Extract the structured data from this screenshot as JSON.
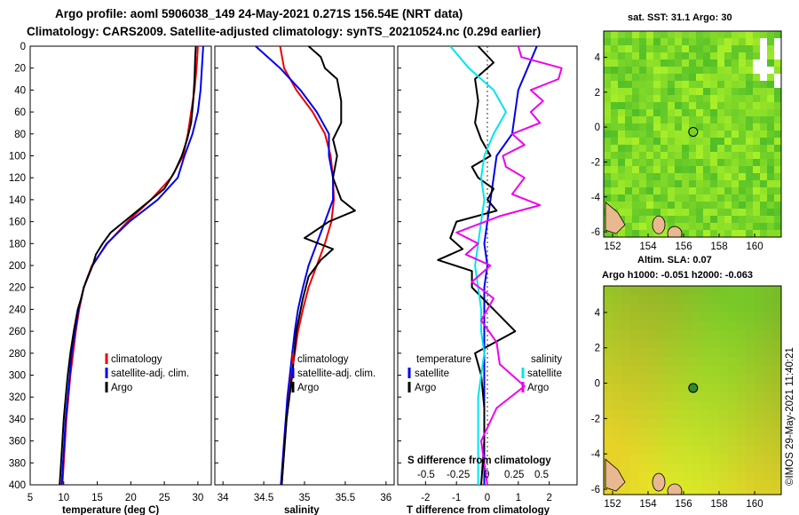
{
  "titles": {
    "line1": "Argo profile: aoml 5906038_149 24-May-2021 0.271S 156.54E (NRT data)",
    "line2": "Climatology: CARS2009. Satellite-adjusted climatology: synTS_20210524.nc (0.29d earlier)"
  },
  "colors": {
    "climatology": "#ee0000",
    "satellite": "#0000ee",
    "argo": "#000000",
    "sal_sat": "#00e5ee",
    "sal_argo": "#ee00ee",
    "land": "#e8b890"
  },
  "chart_data": [
    {
      "type": "line",
      "id": "temperature",
      "xlabel": "temperature (deg C)",
      "xlim": [
        5,
        32
      ],
      "ylim": [
        0,
        400
      ],
      "xticks": [
        5,
        10,
        15,
        20,
        25,
        30
      ],
      "xtick_labels": [
        "5",
        "10",
        "15",
        "20",
        "25",
        "30"
      ],
      "yticks": [
        0,
        20,
        40,
        60,
        80,
        100,
        120,
        140,
        160,
        180,
        200,
        220,
        240,
        260,
        280,
        300,
        320,
        340,
        360,
        380,
        400
      ],
      "legend": [
        "climatology",
        "satellite-adj. clim.",
        "Argo"
      ],
      "series": [
        {
          "name": "climatology",
          "color": "#ee0000",
          "y": [
            0,
            20,
            40,
            60,
            80,
            100,
            120,
            140,
            160,
            180,
            200,
            220,
            240,
            260,
            280,
            300,
            320,
            340,
            360,
            380,
            400
          ],
          "x": [
            30.0,
            29.8,
            29.5,
            29.0,
            28.5,
            27.8,
            26.0,
            23.0,
            19.5,
            16.5,
            14.2,
            13.0,
            12.3,
            11.8,
            11.4,
            11.0,
            10.7,
            10.4,
            10.2,
            10.0,
            9.8
          ]
        },
        {
          "name": "satellite-adj. clim.",
          "color": "#0000ee",
          "y": [
            0,
            20,
            40,
            60,
            80,
            100,
            120,
            140,
            160,
            180,
            200,
            220,
            240,
            260,
            280,
            300,
            320,
            340,
            360,
            380,
            400
          ],
          "x": [
            30.8,
            30.6,
            30.4,
            30.0,
            29.2,
            28.0,
            27.0,
            24.0,
            19.8,
            16.4,
            14.3,
            13.0,
            12.2,
            11.7,
            11.2,
            10.9,
            10.6,
            10.3,
            10.1,
            9.9,
            9.7
          ]
        },
        {
          "name": "Argo",
          "color": "#000000",
          "y": [
            0,
            10,
            30,
            50,
            70,
            85,
            100,
            115,
            130,
            145,
            160,
            170,
            180,
            190,
            200,
            210,
            220,
            230,
            240,
            260,
            280,
            300,
            320,
            340,
            360,
            380,
            400
          ],
          "x": [
            29.7,
            29.6,
            29.5,
            29.3,
            29.0,
            28.4,
            27.6,
            26.5,
            25.0,
            22.0,
            19.0,
            17.0,
            15.8,
            14.8,
            14.3,
            13.6,
            13.0,
            12.6,
            12.1,
            11.5,
            11.0,
            10.6,
            10.3,
            10.0,
            9.8,
            9.6,
            9.4
          ]
        }
      ]
    },
    {
      "type": "line",
      "id": "salinity",
      "xlabel": "salinity",
      "xlim": [
        33.9,
        36.1
      ],
      "ylim": [
        0,
        400
      ],
      "xticks": [
        34,
        34.5,
        35,
        35.5,
        36
      ],
      "xtick_labels": [
        "34",
        "34.5",
        "35",
        "35.5",
        "36"
      ],
      "legend": [
        "climatology",
        "satellite-adj. clim.",
        "Argo"
      ],
      "series": [
        {
          "name": "climatology",
          "color": "#ee0000",
          "y": [
            0,
            20,
            40,
            60,
            80,
            100,
            120,
            140,
            160,
            180,
            200,
            220,
            240,
            260,
            280,
            300,
            320,
            340,
            360,
            380,
            400
          ],
          "x": [
            34.7,
            34.75,
            34.9,
            35.1,
            35.25,
            35.32,
            35.35,
            35.36,
            35.33,
            35.25,
            35.15,
            35.05,
            34.98,
            34.92,
            34.88,
            34.84,
            34.81,
            34.78,
            34.76,
            34.74,
            34.72
          ]
        },
        {
          "name": "satellite-adj. clim.",
          "color": "#0000ee",
          "y": [
            0,
            20,
            40,
            60,
            80,
            100,
            120,
            140,
            160,
            180,
            200,
            220,
            240,
            260,
            280,
            300,
            320,
            340,
            360,
            380,
            400
          ],
          "x": [
            34.4,
            34.7,
            34.95,
            35.15,
            35.3,
            35.3,
            35.35,
            35.35,
            35.25,
            35.15,
            35.05,
            34.98,
            34.92,
            34.88,
            34.85,
            34.82,
            34.79,
            34.77,
            34.75,
            34.73,
            34.71
          ]
        },
        {
          "name": "Argo",
          "color": "#000000",
          "y": [
            0,
            10,
            20,
            30,
            50,
            70,
            85,
            100,
            120,
            140,
            150,
            160,
            175,
            185,
            195,
            210,
            230,
            260,
            300,
            340,
            400
          ],
          "x": [
            35.05,
            35.2,
            35.25,
            35.4,
            35.45,
            35.45,
            35.35,
            35.4,
            35.35,
            35.45,
            35.62,
            35.3,
            35.0,
            35.35,
            35.2,
            35.05,
            34.98,
            34.9,
            34.85,
            34.78,
            34.72
          ]
        }
      ]
    },
    {
      "type": "line",
      "id": "differences",
      "xlabel": "T difference from climatology",
      "xlim": [
        -2.9,
        2.9
      ],
      "ylim": [
        0,
        400
      ],
      "xticks": [
        -2,
        -1,
        0,
        1,
        2
      ],
      "xtick_labels": [
        "-2",
        "-1",
        "0",
        "1",
        "2"
      ],
      "top_axis_label": "S difference from climatology",
      "top_ticks": [
        "-0.5",
        "-0.25",
        "0",
        "0.25",
        "0.5"
      ],
      "legend_temperature_title": "temperature",
      "legend_salinity_title": "salinity",
      "legend_temperature": [
        "satellite",
        "Argo"
      ],
      "legend_salinity": [
        "satellite",
        "Argo"
      ],
      "series": [
        {
          "name": "T satellite",
          "color": "#0000ee",
          "y": [
            0,
            20,
            40,
            60,
            80,
            100,
            120,
            140,
            160,
            180,
            200,
            220,
            240,
            260,
            280,
            300,
            320,
            340,
            360,
            380,
            400
          ],
          "x": [
            1.6,
            1.3,
            1.0,
            0.9,
            0.8,
            0.3,
            0.2,
            0.1,
            0.0,
            -0.1,
            0.0,
            -0.1,
            -0.1,
            -0.1,
            -0.1,
            -0.1,
            -0.1,
            -0.1,
            -0.1,
            -0.1,
            -0.1
          ]
        },
        {
          "name": "T Argo",
          "color": "#000000",
          "y": [
            0,
            15,
            30,
            50,
            70,
            85,
            100,
            110,
            120,
            130,
            140,
            150,
            160,
            175,
            185,
            195,
            205,
            220,
            240,
            260,
            280,
            300,
            330,
            360,
            400
          ],
          "x": [
            -0.3,
            0.2,
            -0.4,
            -0.3,
            -0.4,
            -0.2,
            0.1,
            -0.5,
            -0.3,
            0.2,
            0.0,
            0.3,
            -1.0,
            -1.2,
            -0.8,
            -1.6,
            -0.5,
            -0.5,
            0.2,
            0.9,
            -0.4,
            -0.2,
            -0.1,
            -0.1,
            -0.2
          ]
        },
        {
          "name": "S satellite",
          "color": "#00e5ee",
          "y": [
            0,
            20,
            40,
            60,
            80,
            100,
            120,
            140,
            160,
            180,
            200,
            220,
            240,
            260,
            280,
            300,
            320,
            340,
            360,
            380,
            400
          ],
          "x": [
            -1.2,
            -0.6,
            0.2,
            0.6,
            0.2,
            -0.1,
            -0.2,
            -0.1,
            -0.2,
            -0.3,
            -0.4,
            -0.3,
            -0.2,
            -0.2,
            -0.1,
            -0.2,
            -0.3,
            -0.3,
            -0.3,
            -0.3,
            -0.3
          ]
        },
        {
          "name": "S Argo",
          "color": "#ee00ee",
          "y": [
            0,
            10,
            20,
            30,
            40,
            50,
            60,
            70,
            80,
            90,
            100,
            110,
            120,
            135,
            145,
            155,
            170,
            180,
            190,
            200,
            215,
            230,
            250,
            270,
            290,
            310,
            330,
            360,
            400
          ],
          "x": [
            1.0,
            1.1,
            2.4,
            2.3,
            1.4,
            1.8,
            1.4,
            1.7,
            0.8,
            1.2,
            0.5,
            0.6,
            1.2,
            0.8,
            1.7,
            0.4,
            -1.0,
            -0.3,
            -0.7,
            0.1,
            -0.5,
            0.2,
            -0.2,
            0.3,
            0.4,
            1.2,
            0.3,
            -0.2,
            0.0
          ]
        }
      ]
    },
    {
      "type": "heatmap",
      "id": "sst-map",
      "title": "sat. SST: 31.1 Argo: 30",
      "xlim": [
        151.5,
        161.5
      ],
      "ylim": [
        -6.3,
        5.5
      ],
      "xticks": [
        152,
        154,
        156,
        158,
        160
      ],
      "yticks": [
        4,
        2,
        0,
        -2,
        -4,
        -6
      ],
      "marker": {
        "lon": 156.54,
        "lat": -0.271
      }
    },
    {
      "type": "heatmap",
      "id": "sla-map",
      "title": "Altim. SLA: 0.07",
      "subtitle": "Argo h1000: -0.051 h2000: -0.063",
      "xlim": [
        151.5,
        161.5
      ],
      "ylim": [
        -6.3,
        5.5
      ],
      "xticks": [
        152,
        154,
        156,
        158,
        160
      ],
      "yticks": [
        4,
        2,
        0,
        -2,
        -4,
        -6
      ],
      "marker": {
        "lon": 156.54,
        "lat": -0.271
      }
    }
  ],
  "credit": "©IMOS 29-May-2021 11:40:21"
}
